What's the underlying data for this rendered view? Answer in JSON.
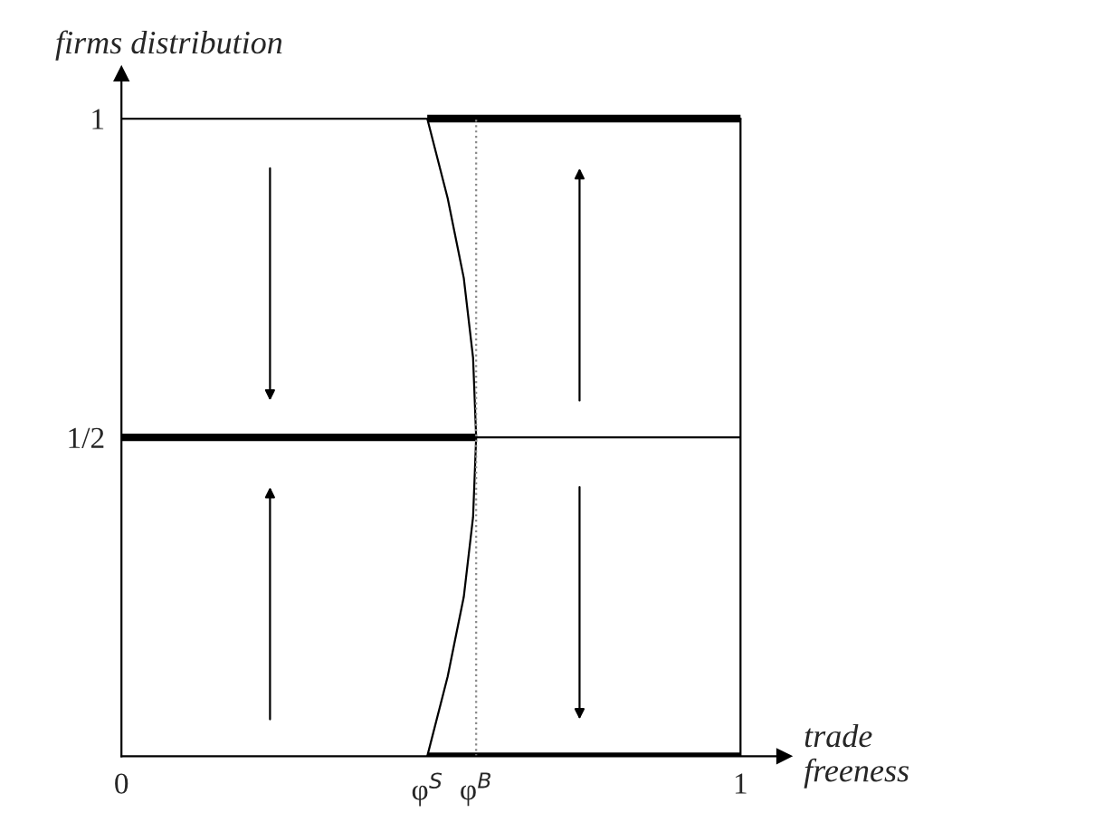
{
  "chart_data": {
    "type": "line",
    "xlabel": "trade\nfreeness",
    "ylabel": "firms distribution",
    "xlim": [
      0,
      1.07
    ],
    "ylim": [
      0,
      1.07
    ],
    "xticks": [
      0,
      {
        "value": 0.494,
        "label": "φ$^{S}$"
      },
      {
        "value": 0.573,
        "label": "φ$^{B}$"
      },
      1
    ],
    "yticks": [
      {
        "value": 0.5,
        "label": "1/2"
      },
      1
    ],
    "series": [
      {
        "color": "#000000",
        "x": [
          0.494,
          1
        ],
        "values": [
          1,
          1
        ],
        "line_style": "solid"
      },
      {
        "color": "#000000",
        "x": [
          0,
          0.573
        ],
        "values": [
          0.5,
          0.5
        ],
        "line_style": "solid"
      },
      {
        "color": "#000000",
        "x": [
          0.494,
          1
        ],
        "values": [
          0,
          0
        ],
        "line_style": "solid"
      },
      {
        "color": "#000000",
        "x": [
          0.573,
          1
        ],
        "values": [
          0.5,
          0.5
        ],
        "line_style": "solid"
      },
      {
        "color": "#000000",
        "x": [
          0.494,
          0.527,
          0.553,
          0.568,
          0.573,
          0.568,
          0.553,
          0.527,
          0.494
        ],
        "values": [
          0,
          0.125,
          0.25,
          0.375,
          0.5,
          0.625,
          0.75,
          0.875,
          1
        ],
        "line_style": "solid"
      }
    ],
    "ref_lines": [
      {
        "axis": "x",
        "value": 1,
        "color": "#000000",
        "line_style": "solid"
      },
      {
        "axis": "y",
        "value": 1,
        "color": "#000000",
        "line_style": "solid"
      },
      {
        "axis": "x",
        "value": 0.573,
        "color": "#888888",
        "line_style": "dotted"
      }
    ],
    "marker": "none",
    "grid": false,
    "legend": false
  }
}
